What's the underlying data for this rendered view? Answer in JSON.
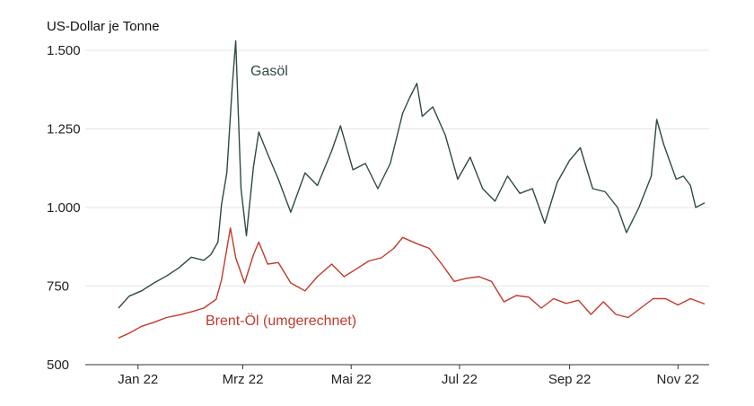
{
  "chart_data": {
    "type": "line",
    "ylabel": "US-Dollar je Tonne",
    "ylim": [
      500,
      1500
    ],
    "yticks": [
      {
        "value": 1500,
        "label": "1.500"
      },
      {
        "value": 1250,
        "label": "1.250"
      },
      {
        "value": 1000,
        "label": "1.000"
      },
      {
        "value": 750,
        "label": "750"
      },
      {
        "value": 500,
        "label": "500"
      }
    ],
    "xlim": [
      "2022-01-04",
      "2022-11-30"
    ],
    "xticks": [
      {
        "value": "2022-01-15",
        "label": "Jan 22"
      },
      {
        "value": "2022-03-15",
        "label": "Mrz 22"
      },
      {
        "value": "2022-05-15",
        "label": "Mai 22"
      },
      {
        "value": "2022-07-15",
        "label": "Jul 22"
      },
      {
        "value": "2022-09-15",
        "label": "Sep 22"
      },
      {
        "value": "2022-11-15",
        "label": "Nov 22"
      }
    ],
    "grid": "horizontal",
    "series": [
      {
        "name": "Gasöl",
        "color": "#2f4a47",
        "points": [
          [
            "2022-01-04",
            680
          ],
          [
            "2022-01-10",
            718
          ],
          [
            "2022-01-17",
            735
          ],
          [
            "2022-01-24",
            760
          ],
          [
            "2022-01-31",
            782
          ],
          [
            "2022-02-07",
            808
          ],
          [
            "2022-02-14",
            842
          ],
          [
            "2022-02-21",
            832
          ],
          [
            "2022-02-25",
            850
          ],
          [
            "2022-03-01",
            890
          ],
          [
            "2022-03-03",
            1010
          ],
          [
            "2022-03-06",
            1110
          ],
          [
            "2022-03-09",
            1380
          ],
          [
            "2022-03-11",
            1530
          ],
          [
            "2022-03-14",
            1060
          ],
          [
            "2022-03-17",
            910
          ],
          [
            "2022-03-21",
            1130
          ],
          [
            "2022-03-24",
            1240
          ],
          [
            "2022-03-29",
            1170
          ],
          [
            "2022-04-04",
            1090
          ],
          [
            "2022-04-11",
            985
          ],
          [
            "2022-04-19",
            1110
          ],
          [
            "2022-04-26",
            1070
          ],
          [
            "2022-05-04",
            1180
          ],
          [
            "2022-05-09",
            1260
          ],
          [
            "2022-05-16",
            1120
          ],
          [
            "2022-05-23",
            1140
          ],
          [
            "2022-05-30",
            1060
          ],
          [
            "2022-06-06",
            1140
          ],
          [
            "2022-06-13",
            1300
          ],
          [
            "2022-06-17",
            1350
          ],
          [
            "2022-06-21",
            1395
          ],
          [
            "2022-06-24",
            1290
          ],
          [
            "2022-06-30",
            1320
          ],
          [
            "2022-07-07",
            1230
          ],
          [
            "2022-07-14",
            1090
          ],
          [
            "2022-07-21",
            1160
          ],
          [
            "2022-07-28",
            1060
          ],
          [
            "2022-08-04",
            1020
          ],
          [
            "2022-08-11",
            1100
          ],
          [
            "2022-08-18",
            1045
          ],
          [
            "2022-08-25",
            1060
          ],
          [
            "2022-09-01",
            950
          ],
          [
            "2022-09-08",
            1080
          ],
          [
            "2022-09-15",
            1150
          ],
          [
            "2022-09-21",
            1190
          ],
          [
            "2022-09-28",
            1060
          ],
          [
            "2022-10-05",
            1050
          ],
          [
            "2022-10-12",
            1000
          ],
          [
            "2022-10-17",
            920
          ],
          [
            "2022-10-24",
            1000
          ],
          [
            "2022-10-31",
            1100
          ],
          [
            "2022-11-03",
            1280
          ],
          [
            "2022-11-07",
            1200
          ],
          [
            "2022-11-14",
            1090
          ],
          [
            "2022-11-18",
            1100
          ],
          [
            "2022-11-22",
            1070
          ],
          [
            "2022-11-25",
            1000
          ],
          [
            "2022-11-30",
            1015
          ]
        ]
      },
      {
        "name": "Brent-Öl (umgerechnet)",
        "color": "#c0392b",
        "points": [
          [
            "2022-01-04",
            585
          ],
          [
            "2022-01-10",
            600
          ],
          [
            "2022-01-17",
            622
          ],
          [
            "2022-01-24",
            635
          ],
          [
            "2022-01-31",
            650
          ],
          [
            "2022-02-07",
            658
          ],
          [
            "2022-02-14",
            668
          ],
          [
            "2022-02-21",
            680
          ],
          [
            "2022-02-28",
            708
          ],
          [
            "2022-03-03",
            770
          ],
          [
            "2022-03-08",
            935
          ],
          [
            "2022-03-11",
            840
          ],
          [
            "2022-03-16",
            760
          ],
          [
            "2022-03-21",
            850
          ],
          [
            "2022-03-24",
            890
          ],
          [
            "2022-03-29",
            820
          ],
          [
            "2022-04-04",
            825
          ],
          [
            "2022-04-11",
            760
          ],
          [
            "2022-04-19",
            735
          ],
          [
            "2022-04-26",
            780
          ],
          [
            "2022-05-04",
            820
          ],
          [
            "2022-05-11",
            780
          ],
          [
            "2022-05-18",
            805
          ],
          [
            "2022-05-25",
            830
          ],
          [
            "2022-06-01",
            840
          ],
          [
            "2022-06-08",
            870
          ],
          [
            "2022-06-13",
            905
          ],
          [
            "2022-06-21",
            885
          ],
          [
            "2022-06-28",
            870
          ],
          [
            "2022-07-05",
            820
          ],
          [
            "2022-07-12",
            765
          ],
          [
            "2022-07-19",
            775
          ],
          [
            "2022-07-26",
            780
          ],
          [
            "2022-08-02",
            765
          ],
          [
            "2022-08-09",
            700
          ],
          [
            "2022-08-16",
            720
          ],
          [
            "2022-08-23",
            715
          ],
          [
            "2022-08-30",
            680
          ],
          [
            "2022-09-06",
            710
          ],
          [
            "2022-09-13",
            695
          ],
          [
            "2022-09-20",
            705
          ],
          [
            "2022-09-27",
            660
          ],
          [
            "2022-10-04",
            700
          ],
          [
            "2022-10-11",
            660
          ],
          [
            "2022-10-18",
            650
          ],
          [
            "2022-10-25",
            680
          ],
          [
            "2022-11-01",
            710
          ],
          [
            "2022-11-08",
            710
          ],
          [
            "2022-11-15",
            690
          ],
          [
            "2022-11-22",
            710
          ],
          [
            "2022-11-30",
            693
          ]
        ]
      }
    ]
  }
}
